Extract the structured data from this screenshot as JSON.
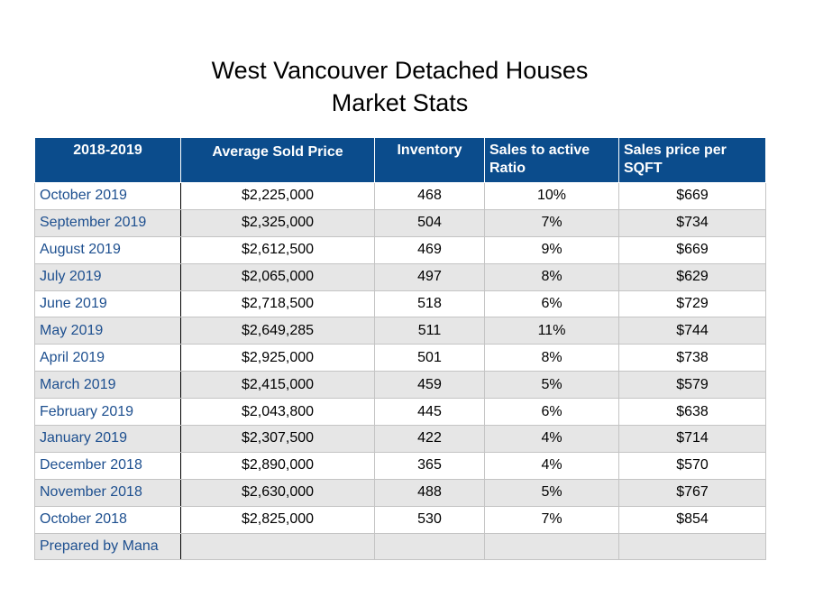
{
  "title": {
    "line1": "West Vancouver Detached Houses",
    "line2": "Market Stats"
  },
  "table": {
    "headers": [
      "2018-2019",
      "Average Sold Price",
      "Inventory",
      "Sales to active Ratio",
      "Sales price per SQFT"
    ],
    "rows": [
      {
        "month": "October 2019",
        "avg_price": "$2,225,000",
        "inventory": "468",
        "ratio": "10%",
        "ppsf": "$669"
      },
      {
        "month": "September 2019",
        "avg_price": "$2,325,000",
        "inventory": "504",
        "ratio": "7%",
        "ppsf": "$734"
      },
      {
        "month": "August 2019",
        "avg_price": "$2,612,500",
        "inventory": "469",
        "ratio": "9%",
        "ppsf": "$669"
      },
      {
        "month": "July 2019",
        "avg_price": "$2,065,000",
        "inventory": "497",
        "ratio": "8%",
        "ppsf": "$629"
      },
      {
        "month": "June 2019",
        "avg_price": "$2,718,500",
        "inventory": "518",
        "ratio": "6%",
        "ppsf": "$729"
      },
      {
        "month": "May 2019",
        "avg_price": "$2,649,285",
        "inventory": "511",
        "ratio": "11%",
        "ppsf": "$744"
      },
      {
        "month": "April 2019",
        "avg_price": "$2,925,000",
        "inventory": "501",
        "ratio": "8%",
        "ppsf": "$738"
      },
      {
        "month": "March 2019",
        "avg_price": "$2,415,000",
        "inventory": "459",
        "ratio": "5%",
        "ppsf": "$579"
      },
      {
        "month": "February 2019",
        "avg_price": "$2,043,800",
        "inventory": "445",
        "ratio": "6%",
        "ppsf": "$638"
      },
      {
        "month": "January 2019",
        "avg_price": "$2,307,500",
        "inventory": "422",
        "ratio": "4%",
        "ppsf": "$714"
      },
      {
        "month": "December 2018",
        "avg_price": "$2,890,000",
        "inventory": "365",
        "ratio": "4%",
        "ppsf": "$570"
      },
      {
        "month": "November 2018",
        "avg_price": "$2,630,000",
        "inventory": "488",
        "ratio": "5%",
        "ppsf": "$767"
      },
      {
        "month": "October 2018",
        "avg_price": "$2,825,000",
        "inventory": "530",
        "ratio": "7%",
        "ppsf": "$854"
      },
      {
        "month": "Prepared by Mana",
        "avg_price": "",
        "inventory": "",
        "ratio": "",
        "ppsf": ""
      }
    ]
  },
  "colors": {
    "header_bg": "#0b4c8c",
    "header_text": "#ffffff",
    "month_text": "#1d4f8f",
    "alt_row_bg": "#e6e6e6"
  }
}
